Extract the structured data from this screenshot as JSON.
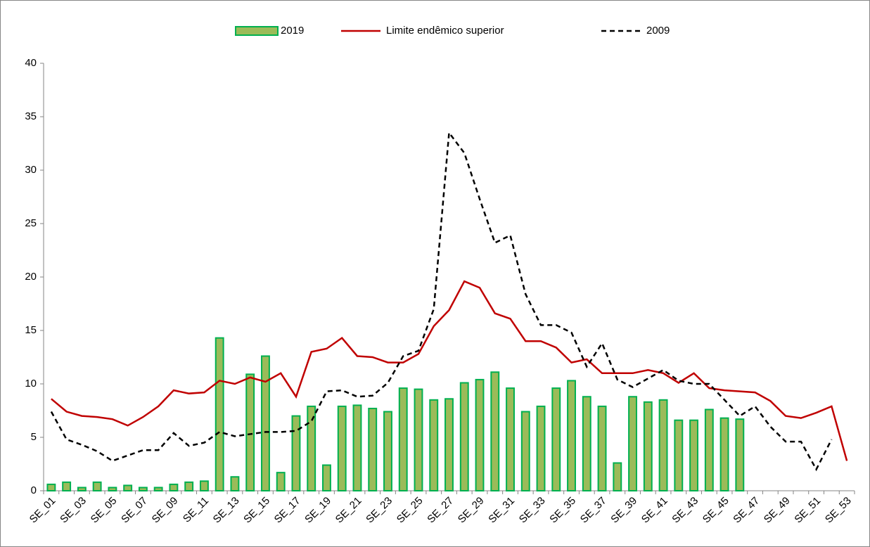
{
  "chart_data": {
    "type": "bar_line",
    "categories": [
      "SE_01",
      null,
      "SE_03",
      null,
      "SE_05",
      null,
      "SE_07",
      null,
      "SE_09",
      null,
      "SE_11",
      null,
      "SE_13",
      null,
      "SE_15",
      null,
      "SE_17",
      null,
      "SE_19",
      null,
      "SE_21",
      null,
      "SE_23",
      null,
      "SE_25",
      null,
      "SE_27",
      null,
      "SE_29",
      null,
      "SE_31",
      null,
      "SE_33",
      null,
      "SE_35",
      null,
      "SE_37",
      null,
      "SE_39",
      null,
      "SE_41",
      null,
      "SE_43",
      null,
      "SE_45",
      null,
      "SE_47",
      null,
      "SE_49",
      null,
      "SE_51",
      null,
      "SE_53"
    ],
    "series": [
      {
        "name": "2019",
        "kind": "bar",
        "color": "#9bbb59",
        "edge": "#00b050",
        "values": [
          0.6,
          0.8,
          0.3,
          0.8,
          0.3,
          0.5,
          0.3,
          0.3,
          0.6,
          0.8,
          0.9,
          14.3,
          1.3,
          10.9,
          12.6,
          1.7,
          7.0,
          7.9,
          2.4,
          7.9,
          8.0,
          7.7,
          7.4,
          9.6,
          9.5,
          8.5,
          8.6,
          10.1,
          10.4,
          11.1,
          9.6,
          7.4,
          7.9,
          9.6,
          10.3,
          8.8,
          7.9,
          2.6,
          8.8,
          8.3,
          8.5,
          6.6,
          6.6,
          7.6,
          6.8,
          6.7,
          null,
          null,
          null,
          null,
          null,
          null,
          null
        ]
      },
      {
        "name": "Limite endêmico superior",
        "kind": "line",
        "color": "#c00000",
        "dashed": false,
        "values": [
          8.6,
          7.4,
          7.0,
          6.9,
          6.7,
          6.1,
          6.9,
          7.9,
          9.4,
          9.1,
          9.2,
          10.3,
          10.0,
          10.6,
          10.2,
          11.0,
          8.8,
          13.0,
          13.3,
          14.3,
          12.6,
          12.5,
          12.0,
          12.0,
          12.8,
          15.4,
          16.9,
          19.6,
          19.0,
          16.6,
          16.1,
          14.0,
          14.0,
          13.4,
          12.0,
          12.3,
          11.0,
          11.0,
          11.0,
          11.3,
          11.0,
          10.1,
          11.0,
          9.6,
          9.4,
          9.3,
          9.2,
          8.4,
          7.0,
          6.8,
          7.3,
          7.9,
          2.8
        ]
      },
      {
        "name": "2009",
        "kind": "line",
        "color": "#000000",
        "dashed": true,
        "values": [
          7.4,
          4.8,
          4.3,
          3.7,
          2.8,
          3.3,
          3.8,
          3.8,
          5.4,
          4.2,
          4.5,
          5.5,
          5.1,
          5.3,
          5.5,
          5.5,
          5.6,
          6.5,
          9.3,
          9.4,
          8.8,
          8.9,
          10.1,
          12.6,
          13.1,
          17.0,
          33.5,
          31.6,
          27.3,
          23.2,
          23.9,
          18.4,
          15.5,
          15.5,
          14.8,
          11.6,
          13.8,
          10.4,
          9.7,
          10.5,
          11.3,
          10.3,
          10.0,
          10.0,
          8.5,
          7.0,
          7.9,
          6.0,
          4.6,
          4.6,
          2.0,
          4.8,
          null
        ]
      }
    ],
    "ylim": [
      0,
      40
    ],
    "yticks": [
      0,
      5,
      10,
      15,
      20,
      25,
      30,
      35,
      40
    ],
    "grid": false,
    "legend": "top"
  }
}
